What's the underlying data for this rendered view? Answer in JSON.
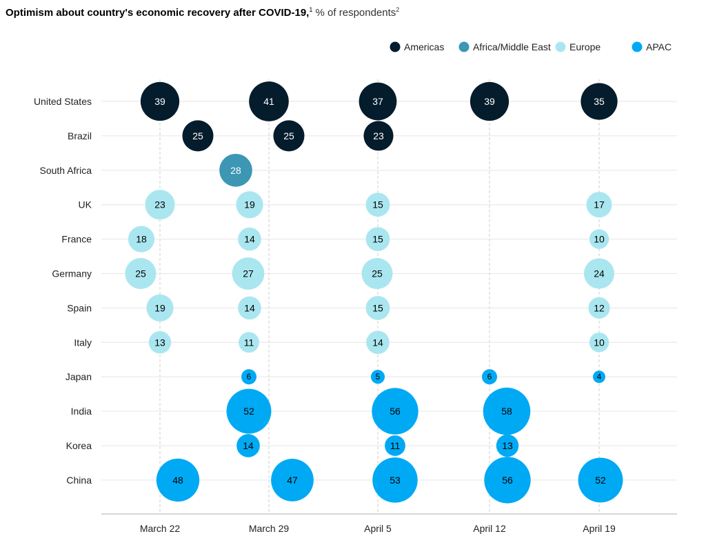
{
  "chart_data": {
    "type": "bubble",
    "title": "Optimism about country's economic recovery after COVID-19,",
    "title_footnote": "1",
    "subtitle": "% of respondents",
    "subtitle_footnote": "2",
    "legend_position": "top-right",
    "legend": [
      {
        "name": "Americas",
        "color": "#051c2c"
      },
      {
        "name": "Africa/Middle East",
        "color": "#3c96b4"
      },
      {
        "name": "Europe",
        "color": "#aae6f0"
      },
      {
        "name": "APAC",
        "color": "#00a9f4"
      }
    ],
    "x_categories": [
      "March 22",
      "March 29",
      "April 5",
      "April 12",
      "April 19"
    ],
    "grid": true,
    "rows": [
      {
        "country": "United States",
        "region": "Americas",
        "values": [
          39,
          41,
          37,
          39,
          35
        ]
      },
      {
        "country": "Brazil",
        "region": "Americas",
        "values": [
          25,
          25,
          23,
          null,
          null
        ]
      },
      {
        "country": "South Africa",
        "region": "Africa/Middle East",
        "values": [
          null,
          28,
          null,
          null,
          null
        ]
      },
      {
        "country": "UK",
        "region": "Europe",
        "values": [
          23,
          19,
          15,
          null,
          17
        ]
      },
      {
        "country": "France",
        "region": "Europe",
        "values": [
          18,
          14,
          15,
          null,
          10
        ]
      },
      {
        "country": "Germany",
        "region": "Europe",
        "values": [
          25,
          27,
          25,
          null,
          24
        ]
      },
      {
        "country": "Spain",
        "region": "Europe",
        "values": [
          19,
          14,
          15,
          null,
          12
        ]
      },
      {
        "country": "Italy",
        "region": "Europe",
        "values": [
          13,
          11,
          14,
          null,
          10
        ]
      },
      {
        "country": "Japan",
        "region": "APAC",
        "values": [
          null,
          6,
          5,
          6,
          4
        ]
      },
      {
        "country": "India",
        "region": "APAC",
        "values": [
          null,
          52,
          56,
          58,
          null
        ]
      },
      {
        "country": "Korea",
        "region": "APAC",
        "values": [
          null,
          14,
          11,
          13,
          null
        ]
      },
      {
        "country": "China",
        "region": "APAC",
        "values": [
          48,
          47,
          53,
          56,
          52
        ]
      }
    ]
  }
}
